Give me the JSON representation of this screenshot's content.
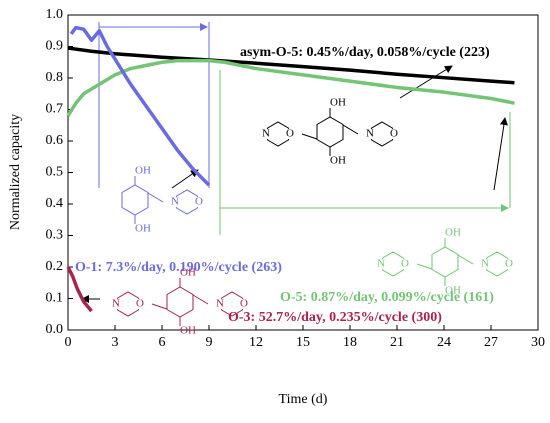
{
  "chart_data": {
    "type": "line",
    "x_label": "Time (d)",
    "y_label": "Normalized capacity",
    "xlim": [
      0,
      30
    ],
    "xticks": [
      0,
      3,
      6,
      9,
      12,
      15,
      18,
      21,
      24,
      27,
      30
    ],
    "ylim": [
      0,
      1.0
    ],
    "yticks": [
      {
        "value": 0,
        "label": "0.0"
      },
      0.1,
      0.2,
      0.3,
      0.4,
      0.5,
      0.6,
      0.7,
      0.8,
      0.9,
      {
        "value": 1.0,
        "label": "1.0"
      }
    ],
    "series": [
      {
        "name": "asym-O-5: 0.45%/day, 0.058%/cycle (223)",
        "color": "#000000",
        "x": [
          0,
          1.5,
          3,
          6,
          9,
          12,
          15,
          18,
          21,
          24,
          27,
          28.5
        ],
        "values": [
          0.895,
          0.885,
          0.877,
          0.866,
          0.857,
          0.847,
          0.836,
          0.825,
          0.812,
          0.801,
          0.79,
          0.785
        ]
      },
      {
        "name": "O-5: 0.87%/day, 0.099%/cycle (161)",
        "color": "#74c476",
        "x": [
          0,
          0.5,
          1,
          2,
          3,
          4,
          5,
          6,
          7,
          8,
          9,
          10,
          12,
          15,
          18,
          21,
          24,
          27,
          28.5
        ],
        "values": [
          0.68,
          0.72,
          0.75,
          0.78,
          0.81,
          0.83,
          0.84,
          0.85,
          0.855,
          0.855,
          0.855,
          0.85,
          0.83,
          0.81,
          0.79,
          0.77,
          0.755,
          0.735,
          0.72
        ]
      },
      {
        "name": "O-1: 7.3%/day, 0.190%/cycle (263)",
        "color": "#6b6be0",
        "x": [
          0.2,
          0.5,
          1,
          1.5,
          2,
          2.5,
          3,
          4,
          5,
          6,
          7,
          8,
          9
        ],
        "values": [
          0.94,
          0.96,
          0.955,
          0.92,
          0.95,
          0.9,
          0.86,
          0.78,
          0.71,
          0.64,
          0.57,
          0.51,
          0.46
        ]
      },
      {
        "name": "O-3: 52.7%/day, 0.235%/cycle (300)",
        "color": "#a8244a",
        "x": [
          0,
          0.3,
          0.6,
          1,
          1.5
        ],
        "values": [
          0.2,
          0.17,
          0.13,
          0.09,
          0.06
        ]
      }
    ],
    "structure_labels": {
      "hydroxyl": "OH",
      "nitrogen": "N",
      "oxygen": "O"
    }
  }
}
